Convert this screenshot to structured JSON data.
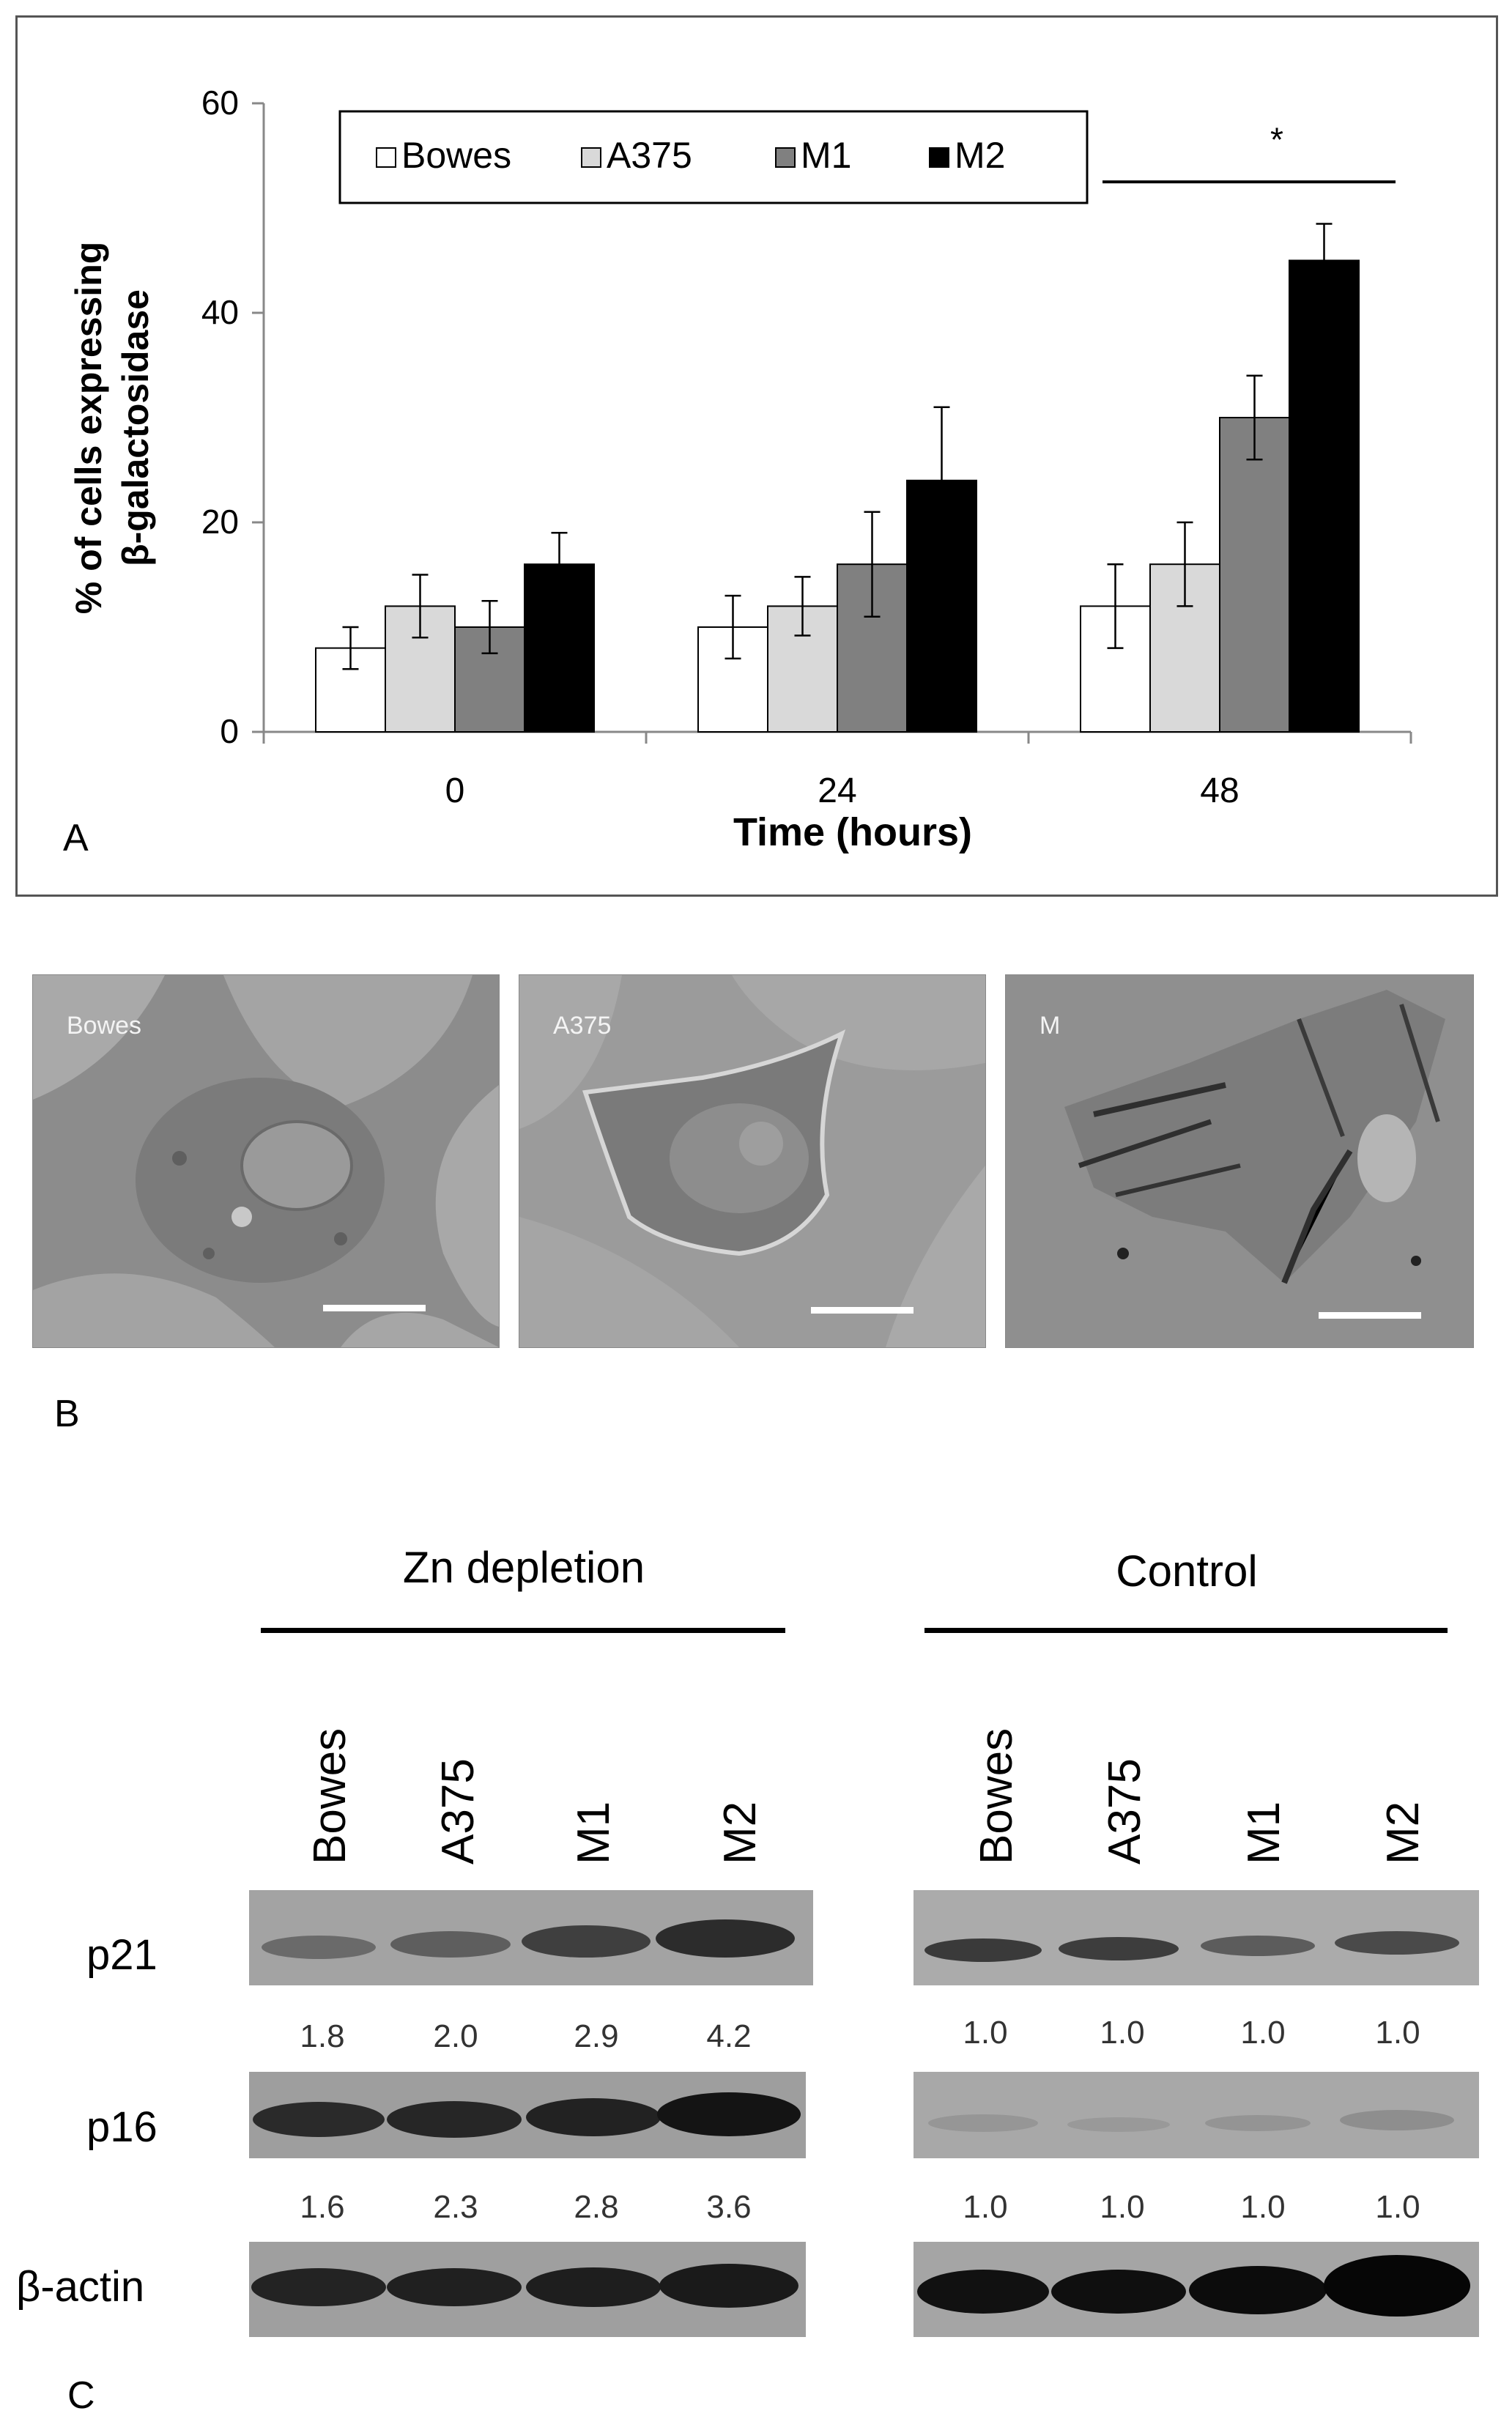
{
  "chart_data": {
    "type": "bar",
    "ylabel_line1": "% of cells expressing",
    "ylabel_line2": "β-galactosidase",
    "xlabel": "Time (hours)",
    "ylim": [
      0,
      60
    ],
    "yticks": [
      0,
      20,
      40,
      60
    ],
    "categories": [
      "0",
      "24",
      "48"
    ],
    "legend_position": "top-left",
    "series": [
      {
        "name": "Bowes",
        "color": "#ffffff",
        "values": [
          8,
          10,
          12
        ],
        "errors": [
          2,
          3,
          4
        ]
      },
      {
        "name": "A375",
        "color": "#d9d9d9",
        "values": [
          12,
          12,
          16
        ],
        "errors": [
          3,
          2.8,
          4
        ]
      },
      {
        "name": "M1",
        "color": "#808080",
        "values": [
          10,
          16,
          30
        ],
        "errors": [
          2.5,
          5,
          4
        ]
      },
      {
        "name": "M2",
        "color": "#000000",
        "values": [
          16,
          24,
          45
        ],
        "errors": [
          3,
          7,
          3.5
        ]
      }
    ],
    "significance": {
      "label": "*",
      "category": "48"
    }
  },
  "panels": {
    "a_label": "A",
    "b_label": "B",
    "c_label": "C"
  },
  "micrographs": [
    {
      "label": "Bowes",
      "tone": "#8a8a8a"
    },
    {
      "label": "A375",
      "tone": "#9a9a9a"
    },
    {
      "label": "M",
      "tone": "#8e8e8e"
    }
  ],
  "western": {
    "groups": [
      {
        "title": "Zn depletion",
        "lanes": [
          "Bowes",
          "A375",
          "M1",
          "M2"
        ],
        "p21": [
          "1.8",
          "2.0",
          "2.9",
          "4.2"
        ],
        "p16": [
          "1.6",
          "2.3",
          "2.8",
          "3.6"
        ]
      },
      {
        "title": "Control",
        "lanes": [
          "Bowes",
          "A375",
          "M1",
          "M2"
        ],
        "p21": [
          "1.0",
          "1.0",
          "1.0",
          "1.0"
        ],
        "p16": [
          "1.0",
          "1.0",
          "1.0",
          "1.0"
        ]
      }
    ],
    "rows": [
      "p21",
      "p16",
      "β-actin"
    ]
  }
}
